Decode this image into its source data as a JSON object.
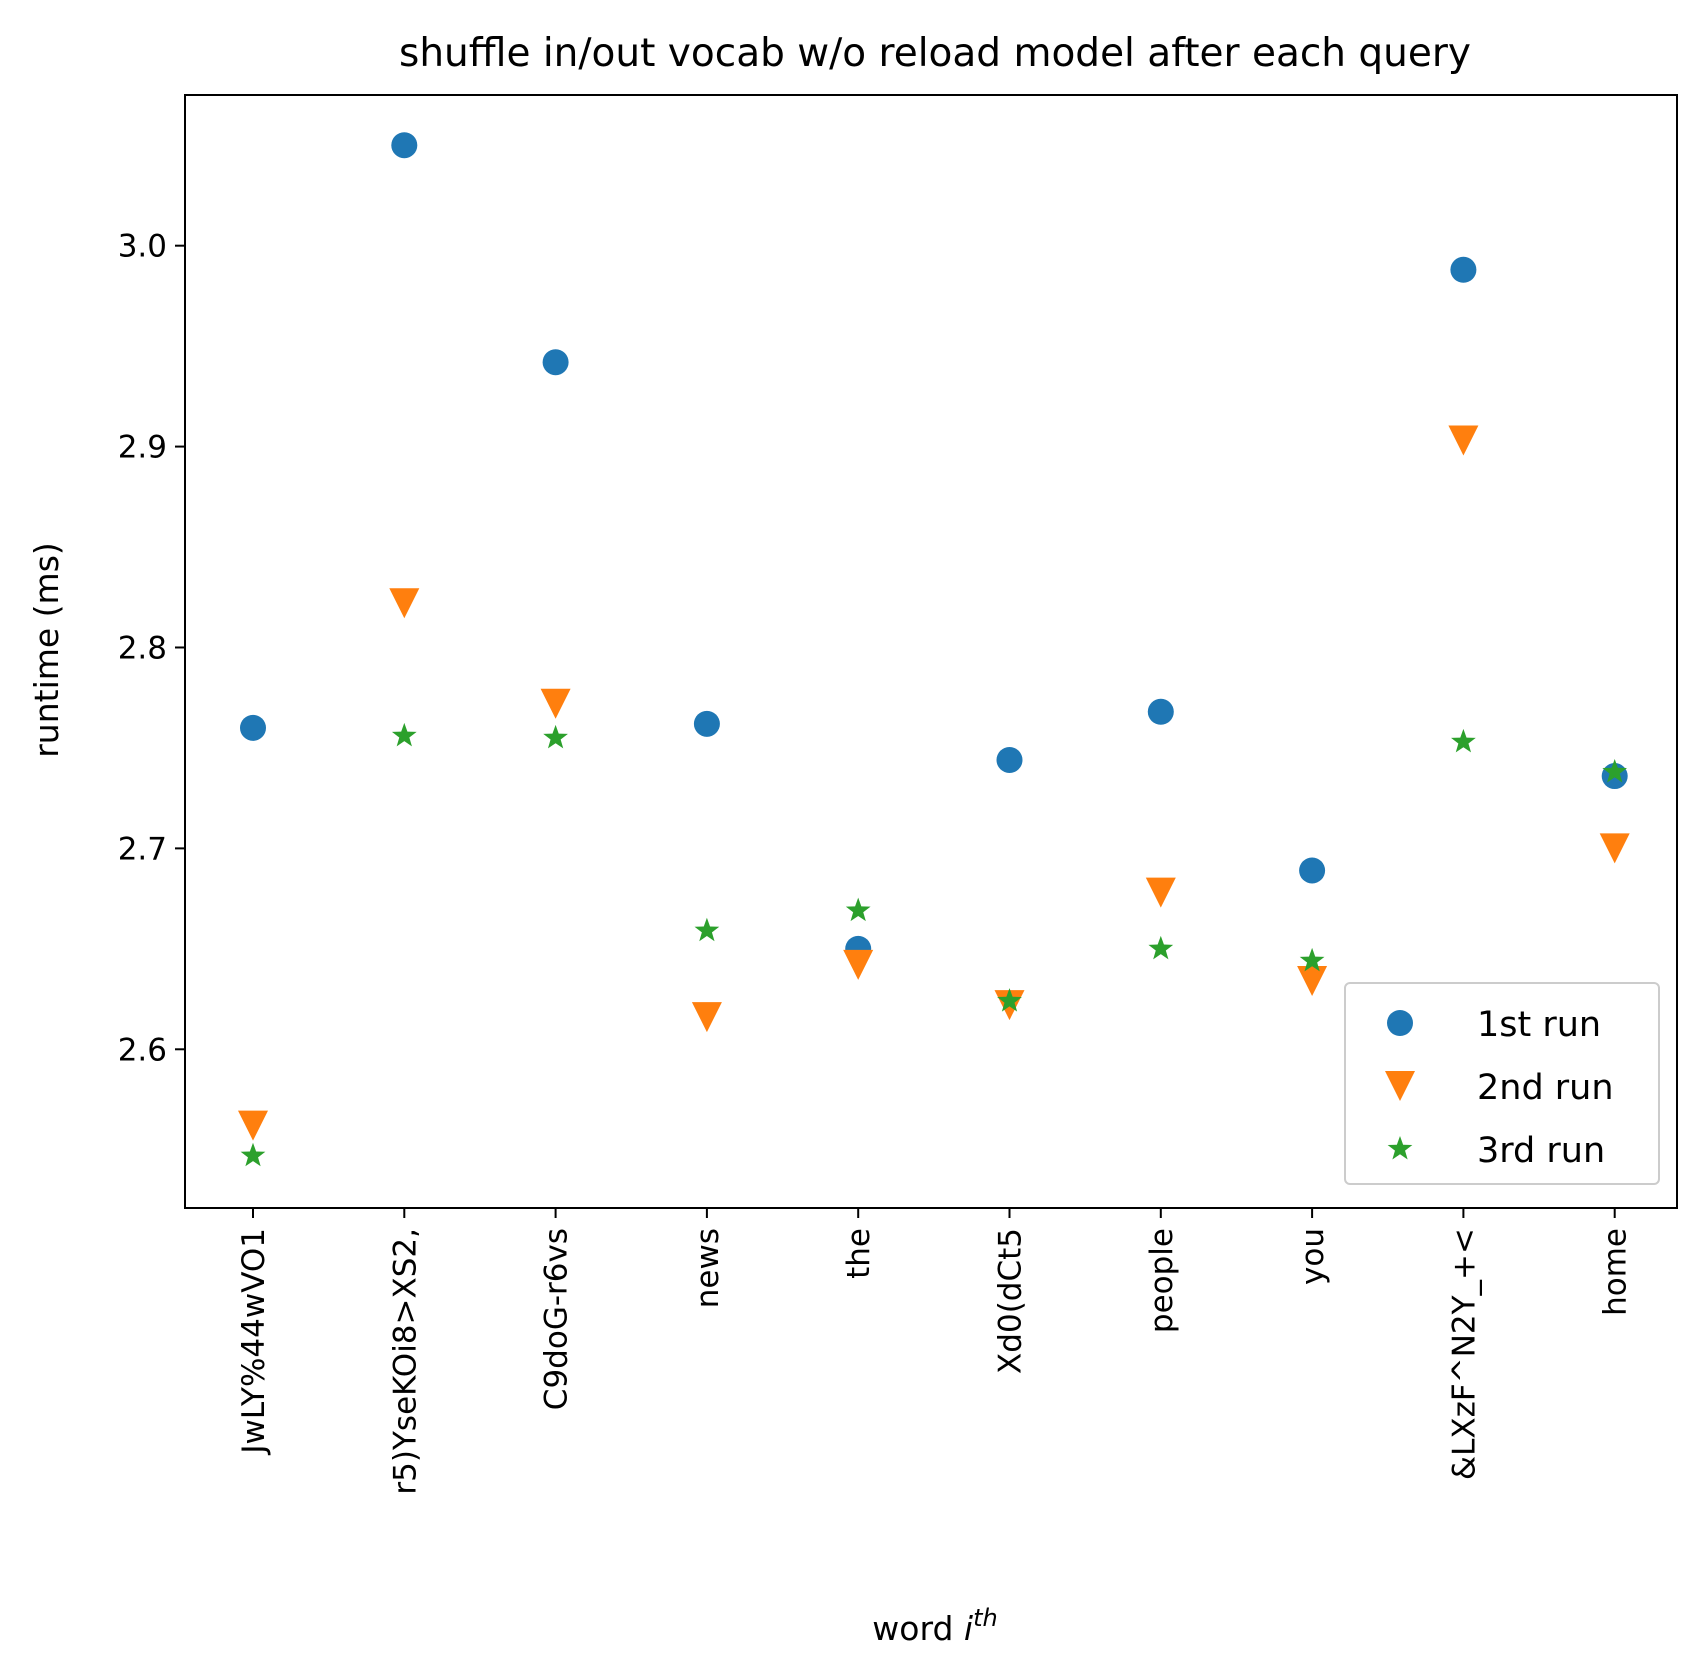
{
  "chart_data": {
    "type": "scatter",
    "title": "shuffle in/out vocab w/o reload model after each query",
    "xlabel": "word ",
    "xlabel_italic": "i",
    "xlabel_superscript": "th",
    "ylabel": "runtime (ms)",
    "categories": [
      "JwLY%44wVO1",
      "r5)YseKOi8>XS2,",
      "C9doG-r6vs",
      "news",
      "the",
      "Xd0(dCt5",
      "people",
      "you",
      "&LXzF^N2Y_+<",
      "home"
    ],
    "yticks": [
      "2.6",
      "2.7",
      "2.8",
      "2.9",
      "3.0"
    ],
    "ylim": [
      2.521,
      3.075
    ],
    "grid": false,
    "legend_position": "lower right",
    "series": [
      {
        "name": "1st run",
        "marker": "circle",
        "color": "#1f77b4",
        "values": [
          2.76,
          3.05,
          2.942,
          2.762,
          2.65,
          2.744,
          2.768,
          2.689,
          2.988,
          2.736
        ]
      },
      {
        "name": "2nd run",
        "marker": "triangle-down",
        "color": "#ff7f0e",
        "values": [
          2.562,
          2.822,
          2.772,
          2.616,
          2.642,
          2.622,
          2.678,
          2.634,
          2.903,
          2.7
        ]
      },
      {
        "name": "3rd run",
        "marker": "star",
        "color": "#2ca02c",
        "values": [
          2.547,
          2.756,
          2.755,
          2.659,
          2.669,
          2.624,
          2.65,
          2.644,
          2.753,
          2.738
        ]
      }
    ]
  }
}
